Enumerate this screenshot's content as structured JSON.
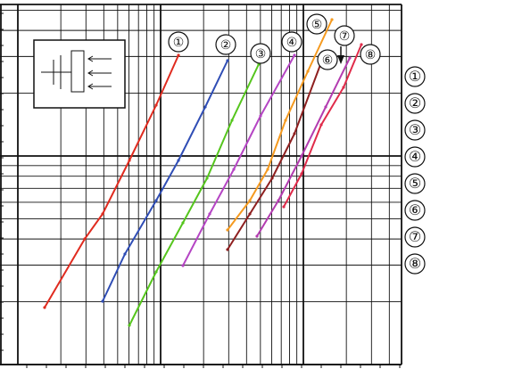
{
  "chart_data": {
    "type": "line",
    "title": "",
    "xlabel": "",
    "ylabel": "",
    "x_scale": "log",
    "y_scale": "log",
    "grid": true,
    "legend_placement": "right",
    "series": [
      {
        "name": "①",
        "color": "#e02b1f",
        "label": "①",
        "points": [
          [
            50,
            345
          ],
          [
            95,
            268
          ],
          [
            115,
            240
          ],
          [
            145,
            180
          ],
          [
            175,
            118
          ],
          [
            200,
            62
          ]
        ]
      },
      {
        "name": "②",
        "color": "#2f4db5",
        "label": "②",
        "points": [
          [
            115,
            338
          ],
          [
            140,
            285
          ],
          [
            175,
            225
          ],
          [
            200,
            180
          ],
          [
            230,
            120
          ],
          [
            255,
            68
          ]
        ]
      },
      {
        "name": "③",
        "color": "#55c51d",
        "label": "③",
        "points": [
          [
            145,
            365
          ],
          [
            175,
            305
          ],
          [
            205,
            250
          ],
          [
            232,
            200
          ],
          [
            260,
            135
          ],
          [
            290,
            72
          ]
        ]
      },
      {
        "name": "④",
        "color": "#b545c4",
        "label": "④",
        "points": [
          [
            205,
            298
          ],
          [
            235,
            240
          ],
          [
            262,
            190
          ],
          [
            292,
            130
          ],
          [
            330,
            62
          ]
        ]
      },
      {
        "name": "⑤",
        "color": "#f59a1f",
        "label": "⑤",
        "points": [
          [
            255,
            258
          ],
          [
            280,
            225
          ],
          [
            300,
            190
          ],
          [
            320,
            135
          ],
          [
            345,
            80
          ],
          [
            372,
            22
          ]
        ]
      },
      {
        "name": "⑥",
        "color": "#8e1f1f",
        "label": "⑥",
        "points": [
          [
            255,
            280
          ],
          [
            280,
            240
          ],
          [
            305,
            200
          ],
          [
            330,
            150
          ],
          [
            360,
            70
          ]
        ]
      },
      {
        "name": "⑦",
        "color": "#b33cb0",
        "label": "⑦",
        "points": [
          [
            288,
            265
          ],
          [
            312,
            225
          ],
          [
            338,
            175
          ],
          [
            365,
            120
          ],
          [
            392,
            65
          ]
        ]
      },
      {
        "name": "⑧",
        "color": "#e02b4a",
        "label": "⑧",
        "points": [
          [
            318,
            232
          ],
          [
            338,
            195
          ],
          [
            360,
            140
          ],
          [
            385,
            98
          ],
          [
            405,
            50
          ]
        ]
      }
    ]
  },
  "legend": {
    "items": [
      "①",
      "②",
      "③",
      "④",
      "⑤",
      "⑥",
      "⑦",
      "⑧"
    ]
  },
  "circled_labels": [
    {
      "text": "①",
      "series": 0
    },
    {
      "text": "②",
      "series": 1
    },
    {
      "text": "③",
      "series": 2
    },
    {
      "text": "④",
      "series": 3
    },
    {
      "text": "⑤",
      "series": 4
    },
    {
      "text": "⑥",
      "series": 5
    },
    {
      "text": "⑦",
      "series": 6
    },
    {
      "text": "⑧",
      "series": 7
    }
  ]
}
